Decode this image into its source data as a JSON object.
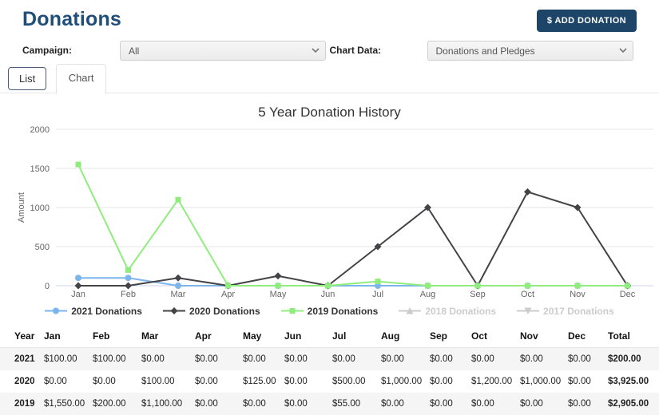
{
  "header": {
    "title": "Donations",
    "add_button_label": "$ ADD DONATION"
  },
  "filters": {
    "campaign_label": "Campaign:",
    "campaign_value": "All",
    "chart_data_label": "Chart Data:",
    "chart_data_value": "Donations and Pledges"
  },
  "tabs": [
    {
      "label": "List",
      "active": false
    },
    {
      "label": "Chart",
      "active": true
    }
  ],
  "colors": {
    "accent_navy": "#1f4e79",
    "button_navy": "#1d4567",
    "grid_line": "#e6e6e6",
    "axis_line": "#ccd6eb",
    "axis_text": "#666666",
    "disabled_legend": "#cccccc",
    "row_stripe": "#f5f5f5"
  },
  "chart_data": {
    "type": "line",
    "title": "5 Year Donation History",
    "xlabel": "",
    "ylabel": "Amount",
    "ylim": [
      0,
      2000
    ],
    "yticks": [
      0,
      500,
      1000,
      1500,
      2000
    ],
    "grid": true,
    "legend_position": "bottom",
    "categories": [
      "Jan",
      "Feb",
      "Mar",
      "Apr",
      "May",
      "Jun",
      "Jul",
      "Aug",
      "Sep",
      "Oct",
      "Nov",
      "Dec"
    ],
    "series": [
      {
        "name": "2021 Donations",
        "color": "#7cb5ec",
        "marker": "circle",
        "visible": true,
        "values": [
          100,
          100,
          0,
          0,
          0,
          0,
          0,
          0,
          0,
          0,
          0,
          0
        ]
      },
      {
        "name": "2020 Donations",
        "color": "#434348",
        "marker": "diamond",
        "visible": true,
        "values": [
          0,
          0,
          100,
          0,
          125,
          0,
          500,
          1000,
          0,
          1200,
          1000,
          0
        ]
      },
      {
        "name": "2019 Donations",
        "color": "#90ed7d",
        "marker": "square",
        "visible": true,
        "values": [
          1550,
          200,
          1100,
          0,
          0,
          0,
          55,
          0,
          0,
          0,
          0,
          0
        ]
      },
      {
        "name": "2018 Donations",
        "color": "#cccccc",
        "marker": "triangle",
        "visible": false,
        "values": []
      },
      {
        "name": "2017 Donations",
        "color": "#cccccc",
        "marker": "triangle-down",
        "visible": false,
        "values": []
      }
    ]
  },
  "table": {
    "columns": [
      "Year",
      "Jan",
      "Feb",
      "Mar",
      "Apr",
      "May",
      "Jun",
      "Jul",
      "Aug",
      "Sep",
      "Oct",
      "Nov",
      "Dec",
      "Total"
    ],
    "rows": [
      {
        "year": "2021",
        "cells": [
          "$100.00",
          "$100.00",
          "$0.00",
          "$0.00",
          "$0.00",
          "$0.00",
          "$0.00",
          "$0.00",
          "$0.00",
          "$0.00",
          "$0.00",
          "$0.00"
        ],
        "total": "$200.00"
      },
      {
        "year": "2020",
        "cells": [
          "$0.00",
          "$0.00",
          "$100.00",
          "$0.00",
          "$125.00",
          "$0.00",
          "$500.00",
          "$1,000.00",
          "$0.00",
          "$1,200.00",
          "$1,000.00",
          "$0.00"
        ],
        "total": "$3,925.00"
      },
      {
        "year": "2019",
        "cells": [
          "$1,550.00",
          "$200.00",
          "$1,100.00",
          "$0.00",
          "$0.00",
          "$0.00",
          "$55.00",
          "$0.00",
          "$0.00",
          "$0.00",
          "$0.00",
          "$0.00"
        ],
        "total": "$2,905.00"
      }
    ]
  }
}
